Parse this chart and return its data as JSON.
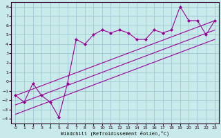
{
  "xlabel": "Windchill (Refroidissement éolien,°C)",
  "bg_color": "#c8eaea",
  "grid_color": "#9dc8d2",
  "line_color": "#990099",
  "xlim": [
    -0.5,
    23.5
  ],
  "ylim": [
    -4.5,
    8.5
  ],
  "xticks": [
    0,
    1,
    2,
    3,
    4,
    5,
    6,
    7,
    8,
    9,
    10,
    11,
    12,
    13,
    14,
    15,
    16,
    17,
    18,
    19,
    20,
    21,
    22,
    23
  ],
  "yticks": [
    -4,
    -3,
    -2,
    -1,
    0,
    1,
    2,
    3,
    4,
    5,
    6,
    7,
    8
  ],
  "line1_x": [
    0,
    1,
    2,
    3,
    4,
    5,
    6,
    7,
    8,
    9,
    10,
    11,
    12,
    13,
    14,
    15,
    16,
    17,
    18,
    19,
    20,
    21,
    22,
    23
  ],
  "line1_y": [
    -1.5,
    -2.2,
    -0.2,
    -1.5,
    -2.2,
    -3.8,
    -0.2,
    4.5,
    4.0,
    5.0,
    5.5,
    5.2,
    5.5,
    5.2,
    4.5,
    4.5,
    5.5,
    5.2,
    5.5,
    8.0,
    6.5,
    6.5,
    5.0,
    6.5
  ],
  "line2_x": [
    0,
    23
  ],
  "line2_y": [
    -1.5,
    6.5
  ],
  "line3_x": [
    0,
    23
  ],
  "line3_y": [
    -3.5,
    4.5
  ],
  "line4_x": [
    0,
    23
  ],
  "line4_y": [
    -2.5,
    5.5
  ]
}
